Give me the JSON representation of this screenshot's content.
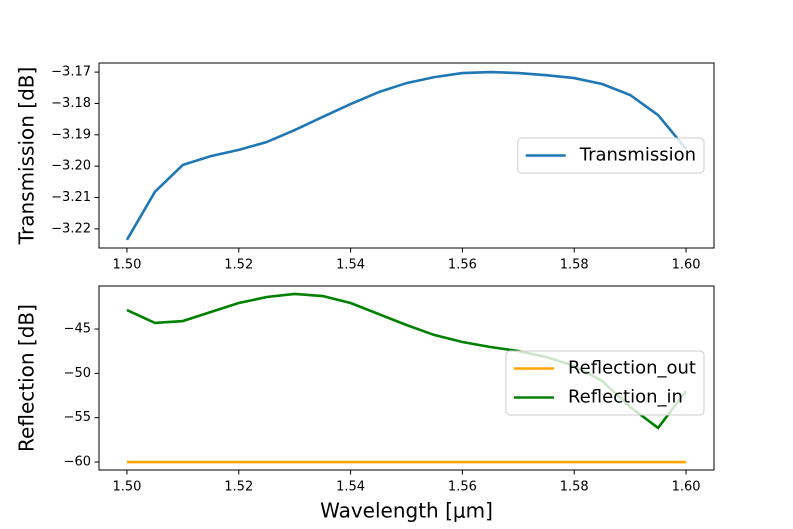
{
  "chart_data": [
    {
      "type": "line",
      "ylabel": "Transmission [dB]",
      "x": [
        1.5,
        1.505,
        1.51,
        1.515,
        1.52,
        1.525,
        1.53,
        1.535,
        1.54,
        1.545,
        1.55,
        1.555,
        1.56,
        1.565,
        1.57,
        1.575,
        1.58,
        1.585,
        1.59,
        1.595,
        1.6
      ],
      "series": [
        {
          "name": "Transmission",
          "color": "#1f77b4",
          "values": [
            -3.2235,
            -3.2082,
            -3.1996,
            -3.1968,
            -3.1948,
            -3.1923,
            -3.1885,
            -3.1843,
            -3.1802,
            -3.1764,
            -3.1735,
            -3.1716,
            -3.1703,
            -3.17,
            -3.1703,
            -3.171,
            -3.1719,
            -3.1738,
            -3.1773,
            -3.1837,
            -3.1945
          ]
        }
      ],
      "xlim": [
        1.495,
        1.605
      ],
      "xticks": [
        {
          "value": 1.5,
          "label": "1.50"
        },
        1.52,
        1.54,
        1.56,
        1.58,
        {
          "value": 1.6,
          "label": "1.60"
        }
      ],
      "ylim": [
        -3.2261,
        -3.1671
      ],
      "yticks": [
        {
          "value": -3.22,
          "label": "−3.22"
        },
        {
          "value": -3.21,
          "label": "−3.21"
        },
        {
          "value": -3.2,
          "label": "−3.20"
        },
        {
          "value": -3.19,
          "label": "−3.19"
        },
        {
          "value": -3.18,
          "label": "−3.18"
        },
        {
          "value": -3.17,
          "label": "−3.17"
        }
      ],
      "legend": "center right"
    },
    {
      "type": "line",
      "ylabel": "Reflection [dB]",
      "xlabel": "Wavelength [μm]",
      "x": [
        1.5,
        1.505,
        1.51,
        1.515,
        1.52,
        1.525,
        1.53,
        1.535,
        1.54,
        1.545,
        1.55,
        1.555,
        1.56,
        1.565,
        1.57,
        1.575,
        1.58,
        1.585,
        1.59,
        1.595,
        1.6
      ],
      "series": [
        {
          "name": "Reflection_out",
          "color": "#ffa500",
          "values": [
            -60,
            -60,
            -60,
            -60,
            -60,
            -60,
            -60,
            -60,
            -60,
            -60,
            -60,
            -60,
            -60,
            -60,
            -60,
            -60,
            -60,
            -60,
            -60,
            -60,
            -60
          ]
        },
        {
          "name": "Reflection_in",
          "color": "#008000",
          "values": [
            -42.86,
            -44.32,
            -44.1,
            -43.08,
            -42.07,
            -41.39,
            -41.05,
            -41.28,
            -42.07,
            -43.31,
            -44.55,
            -45.68,
            -46.47,
            -47.03,
            -47.48,
            -48.16,
            -49.17,
            -50.86,
            -53.79,
            -56.16,
            -51.99
          ]
        }
      ],
      "xlim": [
        1.495,
        1.605
      ],
      "xticks": [
        {
          "value": 1.5,
          "label": "1.50"
        },
        1.52,
        1.54,
        1.56,
        1.58,
        {
          "value": 1.6,
          "label": "1.60"
        }
      ],
      "ylim": [
        -60.9,
        -40.15
      ],
      "yticks": [
        {
          "value": -60,
          "label": "−60"
        },
        {
          "value": -55,
          "label": "−55"
        },
        {
          "value": -50,
          "label": "−50"
        },
        {
          "value": -45,
          "label": "−45"
        }
      ],
      "legend": "center right"
    }
  ]
}
